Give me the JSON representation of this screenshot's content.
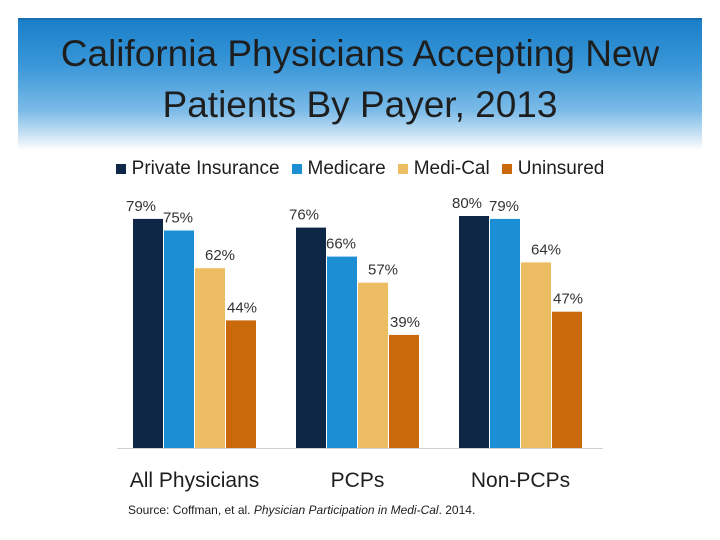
{
  "slide": {
    "title": "California Physicians Accepting New Patients By Payer, 2013",
    "source_prefix": "Source: Coffman, et al. ",
    "source_italic": "Physician Participation in Medi-Cal",
    "source_suffix": ". 2014."
  },
  "colors": {
    "Private Insurance": "#0f2747",
    "Medicare": "#1c8fd4",
    "Medi-Cal": "#ecbd62",
    "Uninsured": "#c9690c",
    "title_band": "#2b8bd2"
  },
  "chart_data": {
    "type": "bar",
    "title": "California Physicians Accepting New Patients By Payer, 2013",
    "xlabel": "",
    "ylabel": "",
    "ylim": [
      0,
      100
    ],
    "grid": false,
    "legend": "top",
    "categories": [
      "All Physicians",
      "PCPs",
      "Non-PCPs"
    ],
    "series": [
      {
        "name": "Private Insurance",
        "values": [
          79,
          76,
          80
        ],
        "labels": [
          "79%",
          "76%",
          "80%"
        ]
      },
      {
        "name": "Medicare",
        "values": [
          75,
          66,
          79
        ],
        "labels": [
          "75%",
          "66%",
          "79%"
        ]
      },
      {
        "name": "Medi-Cal",
        "values": [
          62,
          57,
          64
        ],
        "labels": [
          "62%",
          "57%",
          "64%"
        ]
      },
      {
        "name": "Uninsured",
        "values": [
          44,
          39,
          47
        ],
        "labels": [
          "44%",
          "39%",
          "47%"
        ]
      }
    ]
  }
}
